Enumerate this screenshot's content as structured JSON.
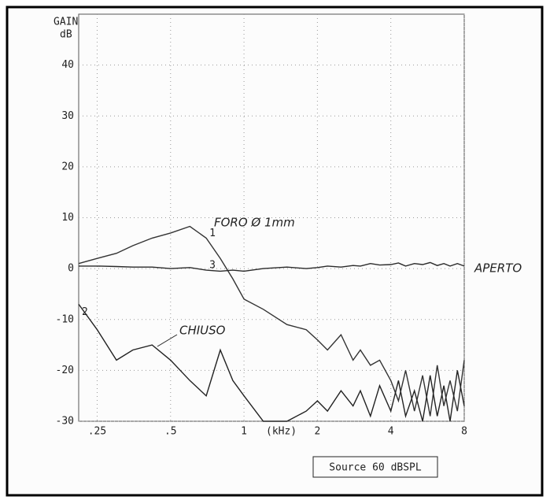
{
  "chart_data": {
    "type": "line",
    "ylabel": "GAIN",
    "yunit": "dB",
    "xunit": "(kHz)",
    "source": "Source  60 dBSPL",
    "annotations": [
      "FORO Ø 1mm",
      "CHIUSO",
      "APERTO"
    ],
    "xscale": "log",
    "grid": true,
    "xlim": [
      0.21,
      8
    ],
    "ylim": [
      -30,
      50
    ],
    "xticks": [
      {
        "value": 0.25,
        "label": ".25"
      },
      {
        "value": 0.5,
        "label": ".5"
      },
      1,
      2,
      4,
      8
    ],
    "yticks": [
      -30,
      -20,
      -10,
      0,
      10,
      20,
      30,
      40
    ],
    "x": [
      0.21,
      0.25,
      0.3,
      0.35,
      0.42,
      0.5,
      0.6,
      0.7,
      0.8,
      0.9,
      1,
      1.2,
      1.5,
      1.8,
      2,
      2.2,
      2.5,
      2.8,
      3,
      3.3,
      3.6,
      4,
      4.3,
      4.6,
      5,
      5.4,
      5.8,
      6.2,
      6.6,
      7,
      7.5,
      8
    ],
    "series": [
      {
        "name": "1",
        "color": "#333333",
        "values": [
          1,
          2,
          3,
          4.5,
          6,
          7,
          8.3,
          6,
          2,
          -2,
          -6,
          -8,
          -11,
          -12,
          -14,
          -16,
          -13,
          -18,
          -16,
          -19,
          -18,
          -22,
          -26,
          -20,
          -28,
          -21,
          -29,
          -19,
          -27,
          -22,
          -28,
          -18
        ]
      },
      {
        "name": "2",
        "color": "#222222",
        "values": [
          -7,
          -12,
          -18,
          -16,
          -15,
          -18,
          -22,
          -25,
          -16,
          -22,
          -25,
          -30,
          -30,
          -28,
          -26,
          -28,
          -24,
          -27,
          -24,
          -29,
          -23,
          -28,
          -22,
          -29,
          -24,
          -30,
          -21,
          -29,
          -23,
          -30,
          -20,
          -27
        ]
      },
      {
        "name": "3",
        "color": "#2a2a2a",
        "values": [
          0.5,
          0.5,
          0.4,
          0.3,
          0.3,
          0,
          0.2,
          -0.3,
          -0.5,
          -0.3,
          -0.5,
          0,
          0.3,
          0,
          0.2,
          0.5,
          0.3,
          0.6,
          0.5,
          1,
          0.7,
          0.8,
          1.1,
          0.5,
          1,
          0.8,
          1.2,
          0.6,
          1,
          0.5,
          1,
          0.5
        ]
      }
    ]
  }
}
